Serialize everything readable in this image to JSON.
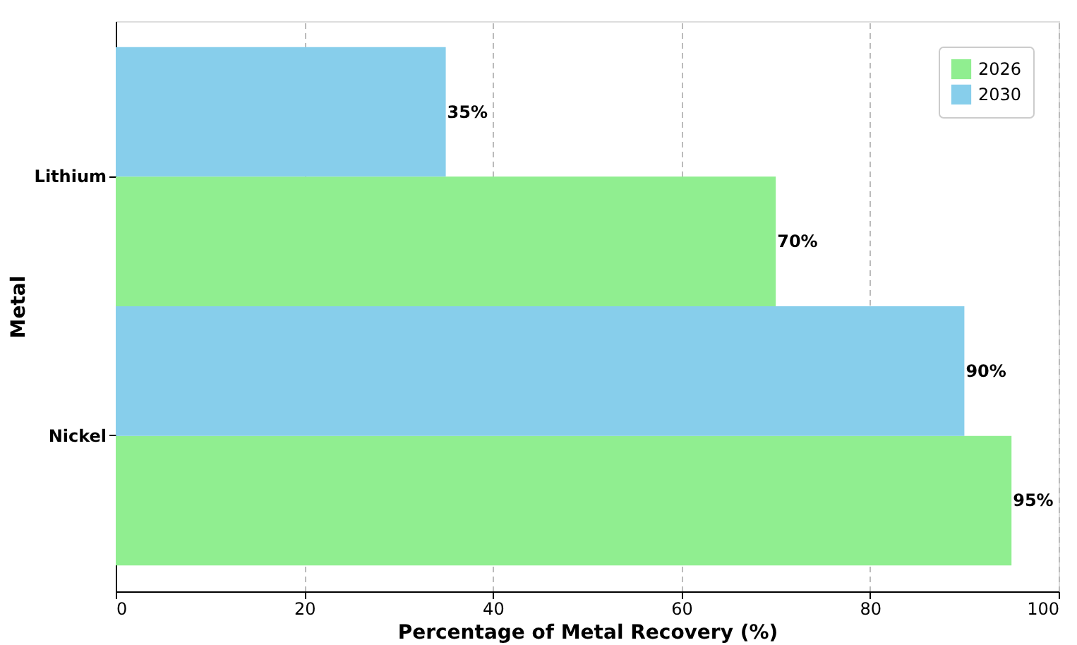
{
  "chart_data": {
    "type": "bar",
    "orientation": "horizontal",
    "xlabel": "Percentage of Metal Recovery (%)",
    "ylabel": "Metal",
    "categories": [
      "Lithium",
      "Nickel"
    ],
    "series": [
      {
        "name": "2026",
        "color": "#90ee90",
        "values": [
          70,
          95
        ],
        "value_labels": [
          "70%",
          "95%"
        ]
      },
      {
        "name": "2030",
        "color": "#87ceeb",
        "values": [
          35,
          90
        ],
        "value_labels": [
          "35%",
          "90%"
        ]
      }
    ],
    "xlim": [
      0,
      100
    ],
    "xticks": [
      0,
      20,
      40,
      60,
      80,
      100
    ],
    "grid": "x",
    "legend": "top right"
  }
}
